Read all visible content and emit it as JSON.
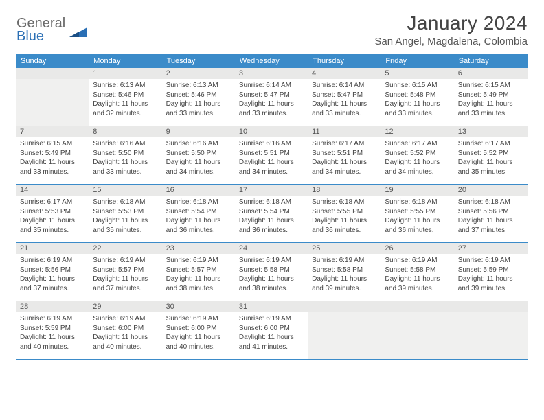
{
  "brand": {
    "general": "General",
    "blue": "Blue"
  },
  "title": "January 2024",
  "location": "San Angel, Magdalena, Colombia",
  "weekdays": [
    "Sunday",
    "Monday",
    "Tuesday",
    "Wednesday",
    "Thursday",
    "Friday",
    "Saturday"
  ],
  "style": {
    "header_bg": "#3b8bc9",
    "header_text": "#ffffff",
    "daynum_bg": "#e9e9e8",
    "empty_bg": "#f0f0ef",
    "row_border": "#3b8bc9",
    "body_text": "#444444",
    "title_fontsize": 28,
    "location_fontsize": 15,
    "weekday_fontsize": 11,
    "daynum_fontsize": 11,
    "detail_fontsize": 10
  },
  "weeks": [
    [
      {
        "day": "",
        "empty": true
      },
      {
        "day": "1",
        "sunrise": "Sunrise: 6:13 AM",
        "sunset": "Sunset: 5:46 PM",
        "daylight": "Daylight: 11 hours and 32 minutes."
      },
      {
        "day": "2",
        "sunrise": "Sunrise: 6:13 AM",
        "sunset": "Sunset: 5:46 PM",
        "daylight": "Daylight: 11 hours and 33 minutes."
      },
      {
        "day": "3",
        "sunrise": "Sunrise: 6:14 AM",
        "sunset": "Sunset: 5:47 PM",
        "daylight": "Daylight: 11 hours and 33 minutes."
      },
      {
        "day": "4",
        "sunrise": "Sunrise: 6:14 AM",
        "sunset": "Sunset: 5:47 PM",
        "daylight": "Daylight: 11 hours and 33 minutes."
      },
      {
        "day": "5",
        "sunrise": "Sunrise: 6:15 AM",
        "sunset": "Sunset: 5:48 PM",
        "daylight": "Daylight: 11 hours and 33 minutes."
      },
      {
        "day": "6",
        "sunrise": "Sunrise: 6:15 AM",
        "sunset": "Sunset: 5:49 PM",
        "daylight": "Daylight: 11 hours and 33 minutes."
      }
    ],
    [
      {
        "day": "7",
        "sunrise": "Sunrise: 6:15 AM",
        "sunset": "Sunset: 5:49 PM",
        "daylight": "Daylight: 11 hours and 33 minutes."
      },
      {
        "day": "8",
        "sunrise": "Sunrise: 6:16 AM",
        "sunset": "Sunset: 5:50 PM",
        "daylight": "Daylight: 11 hours and 33 minutes."
      },
      {
        "day": "9",
        "sunrise": "Sunrise: 6:16 AM",
        "sunset": "Sunset: 5:50 PM",
        "daylight": "Daylight: 11 hours and 34 minutes."
      },
      {
        "day": "10",
        "sunrise": "Sunrise: 6:16 AM",
        "sunset": "Sunset: 5:51 PM",
        "daylight": "Daylight: 11 hours and 34 minutes."
      },
      {
        "day": "11",
        "sunrise": "Sunrise: 6:17 AM",
        "sunset": "Sunset: 5:51 PM",
        "daylight": "Daylight: 11 hours and 34 minutes."
      },
      {
        "day": "12",
        "sunrise": "Sunrise: 6:17 AM",
        "sunset": "Sunset: 5:52 PM",
        "daylight": "Daylight: 11 hours and 34 minutes."
      },
      {
        "day": "13",
        "sunrise": "Sunrise: 6:17 AM",
        "sunset": "Sunset: 5:52 PM",
        "daylight": "Daylight: 11 hours and 35 minutes."
      }
    ],
    [
      {
        "day": "14",
        "sunrise": "Sunrise: 6:17 AM",
        "sunset": "Sunset: 5:53 PM",
        "daylight": "Daylight: 11 hours and 35 minutes."
      },
      {
        "day": "15",
        "sunrise": "Sunrise: 6:18 AM",
        "sunset": "Sunset: 5:53 PM",
        "daylight": "Daylight: 11 hours and 35 minutes."
      },
      {
        "day": "16",
        "sunrise": "Sunrise: 6:18 AM",
        "sunset": "Sunset: 5:54 PM",
        "daylight": "Daylight: 11 hours and 36 minutes."
      },
      {
        "day": "17",
        "sunrise": "Sunrise: 6:18 AM",
        "sunset": "Sunset: 5:54 PM",
        "daylight": "Daylight: 11 hours and 36 minutes."
      },
      {
        "day": "18",
        "sunrise": "Sunrise: 6:18 AM",
        "sunset": "Sunset: 5:55 PM",
        "daylight": "Daylight: 11 hours and 36 minutes."
      },
      {
        "day": "19",
        "sunrise": "Sunrise: 6:18 AM",
        "sunset": "Sunset: 5:55 PM",
        "daylight": "Daylight: 11 hours and 36 minutes."
      },
      {
        "day": "20",
        "sunrise": "Sunrise: 6:18 AM",
        "sunset": "Sunset: 5:56 PM",
        "daylight": "Daylight: 11 hours and 37 minutes."
      }
    ],
    [
      {
        "day": "21",
        "sunrise": "Sunrise: 6:19 AM",
        "sunset": "Sunset: 5:56 PM",
        "daylight": "Daylight: 11 hours and 37 minutes."
      },
      {
        "day": "22",
        "sunrise": "Sunrise: 6:19 AM",
        "sunset": "Sunset: 5:57 PM",
        "daylight": "Daylight: 11 hours and 37 minutes."
      },
      {
        "day": "23",
        "sunrise": "Sunrise: 6:19 AM",
        "sunset": "Sunset: 5:57 PM",
        "daylight": "Daylight: 11 hours and 38 minutes."
      },
      {
        "day": "24",
        "sunrise": "Sunrise: 6:19 AM",
        "sunset": "Sunset: 5:58 PM",
        "daylight": "Daylight: 11 hours and 38 minutes."
      },
      {
        "day": "25",
        "sunrise": "Sunrise: 6:19 AM",
        "sunset": "Sunset: 5:58 PM",
        "daylight": "Daylight: 11 hours and 39 minutes."
      },
      {
        "day": "26",
        "sunrise": "Sunrise: 6:19 AM",
        "sunset": "Sunset: 5:58 PM",
        "daylight": "Daylight: 11 hours and 39 minutes."
      },
      {
        "day": "27",
        "sunrise": "Sunrise: 6:19 AM",
        "sunset": "Sunset: 5:59 PM",
        "daylight": "Daylight: 11 hours and 39 minutes."
      }
    ],
    [
      {
        "day": "28",
        "sunrise": "Sunrise: 6:19 AM",
        "sunset": "Sunset: 5:59 PM",
        "daylight": "Daylight: 11 hours and 40 minutes."
      },
      {
        "day": "29",
        "sunrise": "Sunrise: 6:19 AM",
        "sunset": "Sunset: 6:00 PM",
        "daylight": "Daylight: 11 hours and 40 minutes."
      },
      {
        "day": "30",
        "sunrise": "Sunrise: 6:19 AM",
        "sunset": "Sunset: 6:00 PM",
        "daylight": "Daylight: 11 hours and 40 minutes."
      },
      {
        "day": "31",
        "sunrise": "Sunrise: 6:19 AM",
        "sunset": "Sunset: 6:00 PM",
        "daylight": "Daylight: 11 hours and 41 minutes."
      },
      {
        "day": "",
        "empty": true
      },
      {
        "day": "",
        "empty": true
      },
      {
        "day": "",
        "empty": true
      }
    ]
  ]
}
